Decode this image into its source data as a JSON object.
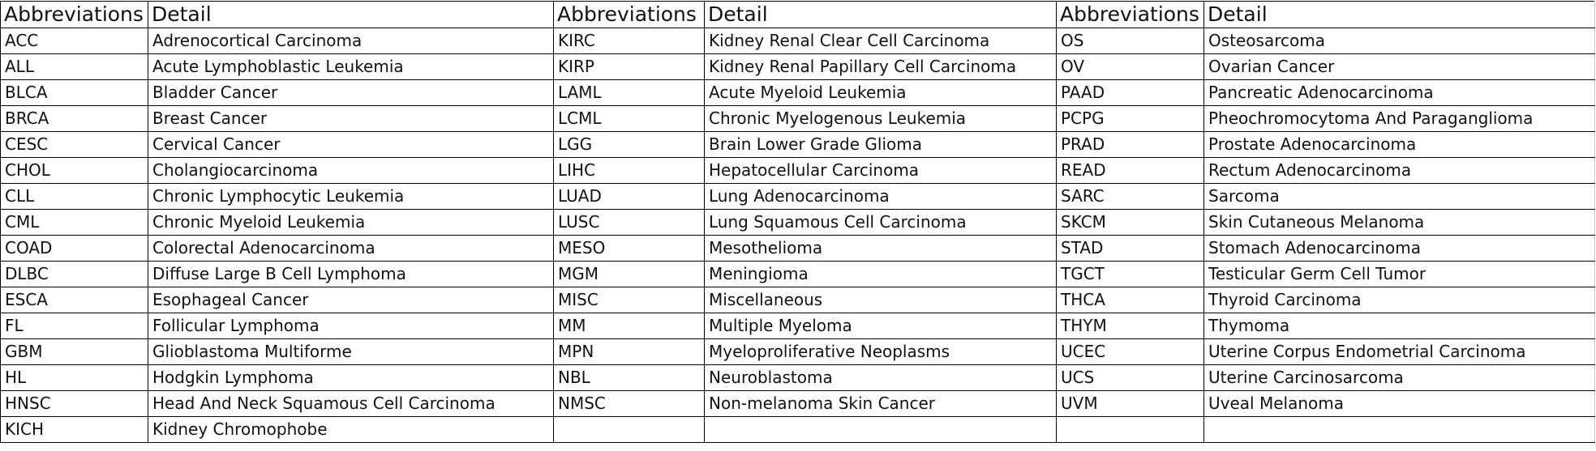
{
  "table": {
    "headers": [
      "Abbreviations",
      "Detail",
      "Abbreviations",
      "Detail",
      "Abbreviations",
      "Detail"
    ],
    "rows": [
      [
        "ACC",
        "Adrenocortical Carcinoma",
        "KIRC",
        "Kidney Renal Clear Cell Carcinoma",
        "OS",
        "Osteosarcoma"
      ],
      [
        "ALL",
        "Acute Lymphoblastic Leukemia",
        "KIRP",
        "Kidney Renal Papillary Cell Carcinoma",
        "OV",
        "Ovarian Cancer"
      ],
      [
        "BLCA",
        "Bladder Cancer",
        "LAML",
        "Acute Myeloid Leukemia",
        "PAAD",
        "Pancreatic Adenocarcinoma"
      ],
      [
        "BRCA",
        "Breast Cancer",
        "LCML",
        "Chronic Myelogenous Leukemia",
        "PCPG",
        "Pheochromocytoma And Paraganglioma"
      ],
      [
        "CESC",
        "Cervical Cancer",
        "LGG",
        "Brain Lower Grade Glioma",
        "PRAD",
        "Prostate Adenocarcinoma"
      ],
      [
        "CHOL",
        "Cholangiocarcinoma",
        "LIHC",
        "Hepatocellular Carcinoma",
        "READ",
        "Rectum Adenocarcinoma"
      ],
      [
        "CLL",
        "Chronic Lymphocytic Leukemia",
        "LUAD",
        "Lung Adenocarcinoma",
        "SARC",
        "Sarcoma"
      ],
      [
        "CML",
        "Chronic Myeloid Leukemia",
        "LUSC",
        "Lung Squamous Cell Carcinoma",
        "SKCM",
        "Skin Cutaneous Melanoma"
      ],
      [
        "COAD",
        "Colorectal Adenocarcinoma",
        "MESO",
        "Mesothelioma",
        "STAD",
        "Stomach Adenocarcinoma"
      ],
      [
        "DLBC",
        "Diffuse Large B Cell Lymphoma",
        "MGM",
        "Meningioma",
        "TGCT",
        "Testicular Germ Cell Tumor"
      ],
      [
        "ESCA",
        "Esophageal Cancer",
        "MISC",
        "Miscellaneous",
        "THCA",
        "Thyroid Carcinoma"
      ],
      [
        "FL",
        "Follicular Lymphoma",
        "MM",
        "Multiple Myeloma",
        "THYM",
        "Thymoma"
      ],
      [
        "GBM",
        "Glioblastoma Multiforme",
        "MPN",
        "Myeloproliferative Neoplasms",
        "UCEC",
        "Uterine Corpus Endometrial Carcinoma"
      ],
      [
        "HL",
        "Hodgkin Lymphoma",
        "NBL",
        "Neuroblastoma",
        "UCS",
        "Uterine Carcinosarcoma"
      ],
      [
        "HNSC",
        "Head And Neck Squamous Cell Carcinoma",
        "NMSC",
        "Non-melanoma Skin Cancer",
        "UVM",
        "Uveal Melanoma"
      ],
      [
        "KICH",
        "Kidney Chromophobe",
        "",
        "",
        "",
        ""
      ]
    ]
  }
}
